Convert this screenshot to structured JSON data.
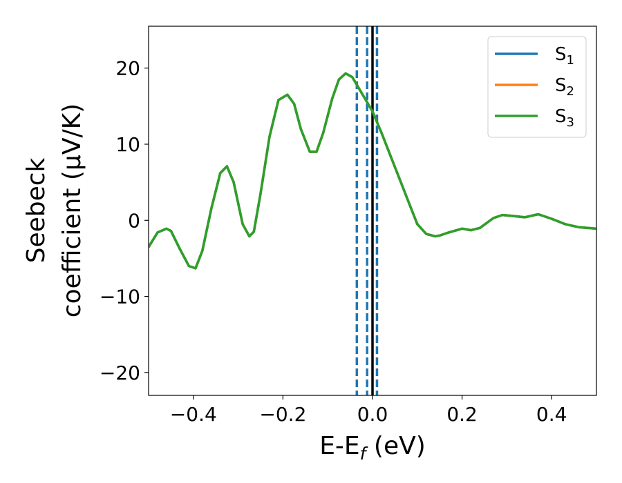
{
  "chart_data": {
    "type": "line",
    "xlabel": "E-E",
    "xlabel_sub": "f",
    "xlabel_unit": " (eV)",
    "ylabel_line1": "Seebeck",
    "ylabel_line2": "coefficient  (μV/K)",
    "xlim": [
      -0.5,
      0.5
    ],
    "ylim": [
      -23,
      25.5
    ],
    "xticks": [
      -0.4,
      -0.2,
      0.0,
      0.2,
      0.4
    ],
    "xtick_labels": [
      "−0.4",
      "−0.2",
      "0.0",
      "0.2",
      "0.4"
    ],
    "yticks": [
      -20,
      -10,
      0,
      10,
      20
    ],
    "ytick_labels": [
      "−20",
      "−10",
      "0",
      "10",
      "20"
    ],
    "legend_position": "top-right",
    "legend": [
      {
        "base": "S",
        "sub": "1",
        "color": "#1f77b4"
      },
      {
        "base": "S",
        "sub": "2",
        "color": "#ff7f0e"
      },
      {
        "base": "S",
        "sub": "3",
        "color": "#2ca02c"
      }
    ],
    "vlines": [
      {
        "x": 0.0,
        "style": "solid",
        "color": "#000000"
      },
      {
        "x": -0.035,
        "style": "dashed",
        "color": "#1f77b4"
      },
      {
        "x": -0.012,
        "style": "dashed",
        "color": "#1f77b4"
      },
      {
        "x": 0.01,
        "style": "dashed",
        "color": "#1f77b4"
      }
    ],
    "x": [
      -0.5,
      -0.48,
      -0.46,
      -0.45,
      -0.43,
      -0.41,
      -0.395,
      -0.38,
      -0.36,
      -0.34,
      -0.325,
      -0.31,
      -0.29,
      -0.275,
      -0.265,
      -0.25,
      -0.23,
      -0.21,
      -0.19,
      -0.175,
      -0.16,
      -0.14,
      -0.125,
      -0.11,
      -0.09,
      -0.075,
      -0.06,
      -0.045,
      -0.03,
      -0.015,
      0.0,
      0.02,
      0.04,
      0.06,
      0.08,
      0.1,
      0.12,
      0.14,
      0.15,
      0.17,
      0.2,
      0.22,
      0.24,
      0.27,
      0.29,
      0.31,
      0.34,
      0.37,
      0.4,
      0.43,
      0.46,
      0.5
    ],
    "series": [
      {
        "name": "S₁",
        "color": "#1f77b4",
        "values": [
          -3.5,
          -1.6,
          -1.1,
          -1.4,
          -3.8,
          -6.0,
          -6.3,
          -4.0,
          1.5,
          6.2,
          7.1,
          5.0,
          -0.5,
          -2.1,
          -1.5,
          3.5,
          11.0,
          15.8,
          16.5,
          15.3,
          12.0,
          9.0,
          9.0,
          11.5,
          16.0,
          18.5,
          19.3,
          18.8,
          17.3,
          15.8,
          14.3,
          11.5,
          8.5,
          5.5,
          2.5,
          -0.5,
          -1.8,
          -2.1,
          -2.0,
          -1.6,
          -1.1,
          -1.3,
          -1.0,
          0.3,
          0.7,
          0.6,
          0.4,
          0.8,
          0.2,
          -0.5,
          -0.9,
          -1.1
        ]
      },
      {
        "name": "S₂",
        "color": "#ff7f0e",
        "values": [
          -3.5,
          -1.6,
          -1.1,
          -1.4,
          -3.8,
          -6.0,
          -6.3,
          -4.0,
          1.5,
          6.2,
          7.1,
          5.0,
          -0.5,
          -2.1,
          -1.5,
          3.5,
          11.0,
          15.8,
          16.5,
          15.3,
          12.0,
          9.0,
          9.0,
          11.5,
          16.0,
          18.5,
          19.3,
          18.8,
          17.3,
          15.8,
          14.3,
          11.5,
          8.5,
          5.5,
          2.5,
          -0.5,
          -1.8,
          -2.1,
          -2.0,
          -1.6,
          -1.1,
          -1.3,
          -1.0,
          0.3,
          0.7,
          0.6,
          0.4,
          0.8,
          0.2,
          -0.5,
          -0.9,
          -1.1
        ]
      },
      {
        "name": "S₃",
        "color": "#2ca02c",
        "values": [
          -3.5,
          -1.6,
          -1.1,
          -1.4,
          -3.8,
          -6.0,
          -6.3,
          -4.0,
          1.5,
          6.2,
          7.1,
          5.0,
          -0.5,
          -2.1,
          -1.5,
          3.5,
          11.0,
          15.8,
          16.5,
          15.3,
          12.0,
          9.0,
          9.0,
          11.5,
          16.0,
          18.5,
          19.3,
          18.8,
          17.3,
          15.8,
          14.3,
          11.5,
          8.5,
          5.5,
          2.5,
          -0.5,
          -1.8,
          -2.1,
          -2.0,
          -1.6,
          -1.1,
          -1.3,
          -1.0,
          0.3,
          0.7,
          0.6,
          0.4,
          0.8,
          0.2,
          -0.5,
          -0.9,
          -1.1
        ]
      }
    ]
  }
}
